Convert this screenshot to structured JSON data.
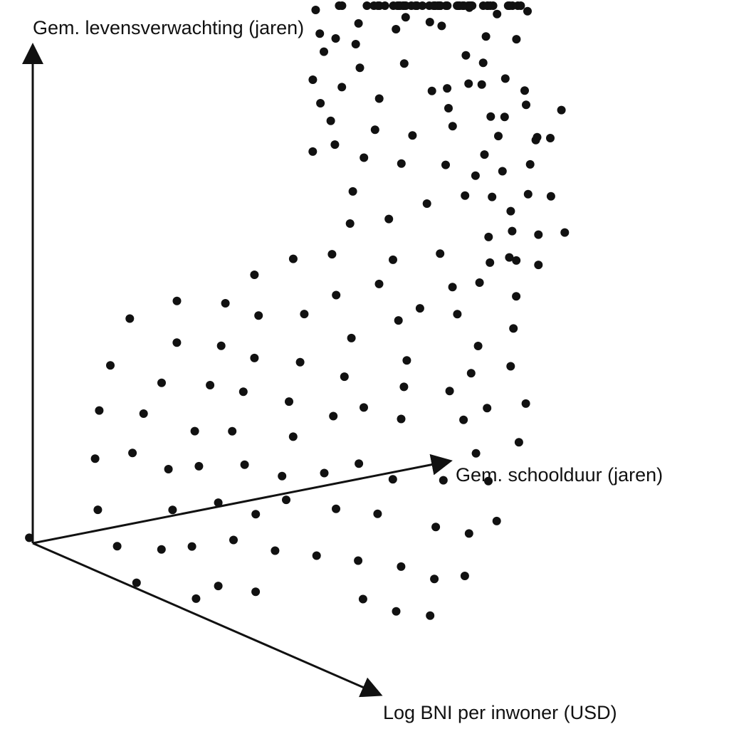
{
  "chart_data": {
    "type": "scatter",
    "projection": "3d",
    "title": "",
    "axes": {
      "vertical": "Gem. levensverwachting (jaren)",
      "depth": "Gem. schoolduur (jaren)",
      "front": "Log BNI per inwoner (USD)"
    },
    "tick_labels": "none",
    "grid": false,
    "legend": "none",
    "colors": {
      "background": "#ffffff",
      "axes": "#111111",
      "points": "#111111"
    },
    "points_note": "Values are the three axis coordinates in arbitrary units (no tick labels printed): x = Gem. schoolduur along depth axis, y = Log BNI along front axis, z = Gem. levensverwachting.",
    "points": [
      {
        "x": 0.94,
        "y": -0.3,
        "z": 0.68
      },
      {
        "x": 0.97,
        "y": -0.29,
        "z": 0.67
      },
      {
        "x": 1.06,
        "y": -0.12,
        "z": 0.61
      },
      {
        "x": 0.85,
        "y": -0.19,
        "z": 0.6
      },
      {
        "x": 1.01,
        "y": -0.14,
        "z": 0.66
      },
      {
        "x": 1.08,
        "y": -0.22,
        "z": 0.71
      },
      {
        "x": 1.15,
        "y": -0.2,
        "z": 0.69
      },
      {
        "x": 1.08,
        "y": -0.15,
        "z": 0.72
      },
      {
        "x": 1.03,
        "y": -0.04,
        "z": 0.64
      },
      {
        "x": 1.1,
        "y": -0.07,
        "z": 0.68
      },
      {
        "x": 1.0,
        "y": 0.0,
        "z": 0.62
      },
      {
        "x": 0.96,
        "y": 0.06,
        "z": 0.61
      },
      {
        "x": 1.04,
        "y": 0.01,
        "z": 0.66
      },
      {
        "x": 1.08,
        "y": 0.0,
        "z": 0.65
      },
      {
        "x": 1.12,
        "y": 0.02,
        "z": 0.66
      },
      {
        "x": 1.06,
        "y": 0.05,
        "z": 0.61
      },
      {
        "x": 1.15,
        "y": 0.04,
        "z": 0.64
      },
      {
        "x": 1.18,
        "y": 0.11,
        "z": 0.62
      },
      {
        "x": 1.12,
        "y": 0.08,
        "z": 0.63
      },
      {
        "x": 1.06,
        "y": 0.09,
        "z": 0.62
      },
      {
        "x": 1.02,
        "y": 0.12,
        "z": 0.6
      },
      {
        "x": 0.97,
        "y": 0.14,
        "z": 0.58
      },
      {
        "x": 1.08,
        "y": 0.16,
        "z": 0.6
      },
      {
        "x": 1.12,
        "y": 0.15,
        "z": 0.59
      },
      {
        "x": 0.91,
        "y": 0.1,
        "z": 0.56
      },
      {
        "x": 0.94,
        "y": 0.15,
        "z": 0.55
      },
      {
        "x": 0.98,
        "y": 0.18,
        "z": 0.56
      },
      {
        "x": 1.03,
        "y": 0.2,
        "z": 0.57
      },
      {
        "x": 1.11,
        "y": 0.12,
        "z": 0.58
      },
      {
        "x": 0.89,
        "y": 0.18,
        "z": 0.53
      },
      {
        "x": 0.84,
        "y": 0.13,
        "z": 0.51
      },
      {
        "x": 0.93,
        "y": 0.21,
        "z": 0.53
      },
      {
        "x": 0.95,
        "y": 0.24,
        "z": 0.51
      },
      {
        "x": 1.0,
        "y": 0.23,
        "z": 0.53
      },
      {
        "x": 1.03,
        "y": 0.26,
        "z": 0.53
      },
      {
        "x": 0.88,
        "y": 0.26,
        "z": 0.48
      },
      {
        "x": 0.92,
        "y": 0.28,
        "z": 0.49
      },
      {
        "x": 0.78,
        "y": 0.24,
        "z": 0.46
      },
      {
        "x": 0.85,
        "y": 0.3,
        "z": 0.45
      },
      {
        "x": 0.8,
        "y": 0.33,
        "z": 0.43
      },
      {
        "x": 0.76,
        "y": 0.3,
        "z": 0.42
      },
      {
        "x": 0.88,
        "y": 0.34,
        "z": 0.46
      },
      {
        "x": 0.69,
        "y": 0.29,
        "z": 0.39
      },
      {
        "x": 0.73,
        "y": 0.35,
        "z": 0.39
      },
      {
        "x": 0.83,
        "y": 0.4,
        "z": 0.42
      },
      {
        "x": 0.79,
        "y": 0.44,
        "z": 0.38
      },
      {
        "x": 0.88,
        "y": 0.32,
        "z": 0.46
      },
      {
        "x": 0.95,
        "y": 0.32,
        "z": 0.49
      },
      {
        "x": 0.9,
        "y": 0.38,
        "z": 0.46
      },
      {
        "x": 0.98,
        "y": 0.36,
        "z": 0.5
      },
      {
        "x": 0.73,
        "y": 0.41,
        "z": 0.35
      },
      {
        "x": 0.68,
        "y": 0.45,
        "z": 0.32
      },
      {
        "x": 0.75,
        "y": 0.48,
        "z": 0.33
      },
      {
        "x": 0.66,
        "y": 0.52,
        "z": 0.28
      },
      {
        "x": 0.72,
        "y": 0.56,
        "z": 0.29
      },
      {
        "x": 0.62,
        "y": 0.5,
        "z": 0.26
      },
      {
        "x": 0.6,
        "y": 0.56,
        "z": 0.22
      },
      {
        "x": 0.67,
        "y": 0.6,
        "z": 0.24
      },
      {
        "x": 0.58,
        "y": 0.62,
        "z": 0.19
      },
      {
        "x": 0.53,
        "y": 0.55,
        "z": 0.18
      },
      {
        "x": 0.55,
        "y": 0.68,
        "z": 0.14
      },
      {
        "x": 0.5,
        "y": 0.66,
        "z": 0.12
      },
      {
        "x": 0.47,
        "y": 0.6,
        "z": 0.12
      },
      {
        "x": 0.44,
        "y": 0.72,
        "z": 0.07
      },
      {
        "x": 0.4,
        "y": 0.68,
        "z": 0.06
      },
      {
        "x": 0.37,
        "y": 0.62,
        "z": 0.07
      },
      {
        "x": 0.34,
        "y": 0.74,
        "z": 0.02
      },
      {
        "x": 0.3,
        "y": 0.69,
        "z": 0.02
      },
      {
        "x": 0.27,
        "y": 0.63,
        "z": 0.03
      },
      {
        "x": 0.45,
        "y": 0.5,
        "z": 0.18
      },
      {
        "x": 0.41,
        "y": 0.45,
        "z": 0.2
      },
      {
        "x": 0.38,
        "y": 0.54,
        "z": 0.14
      },
      {
        "x": 0.33,
        "y": 0.48,
        "z": 0.14
      },
      {
        "x": 0.36,
        "y": 0.41,
        "z": 0.18
      },
      {
        "x": 0.3,
        "y": 0.58,
        "z": 0.08
      },
      {
        "x": 0.25,
        "y": 0.52,
        "z": 0.08
      },
      {
        "x": 0.2,
        "y": 0.46,
        "z": 0.08
      },
      {
        "x": 0.15,
        "y": 0.4,
        "z": 0.09
      },
      {
        "x": 0.12,
        "y": 0.5,
        "z": 0.03
      },
      {
        "x": 0.08,
        "y": 0.44,
        "z": 0.03
      },
      {
        "x": 0.52,
        "y": 0.44,
        "z": 0.26
      },
      {
        "x": 0.48,
        "y": 0.38,
        "z": 0.27
      },
      {
        "x": 0.56,
        "y": 0.4,
        "z": 0.3
      },
      {
        "x": 0.6,
        "y": 0.36,
        "z": 0.33
      },
      {
        "x": 0.5,
        "y": 0.3,
        "z": 0.3
      },
      {
        "x": 0.44,
        "y": 0.34,
        "z": 0.25
      },
      {
        "x": 0.55,
        "y": 0.26,
        "z": 0.35
      },
      {
        "x": 0.63,
        "y": 0.3,
        "z": 0.38
      },
      {
        "x": 0.65,
        "y": 0.22,
        "z": 0.42
      },
      {
        "x": 0.58,
        "y": 0.18,
        "z": 0.4
      },
      {
        "x": 0.7,
        "y": 0.2,
        "z": 0.45
      },
      {
        "x": 0.62,
        "y": 0.12,
        "z": 0.45
      },
      {
        "x": 0.56,
        "y": 0.08,
        "z": 0.44
      },
      {
        "x": 0.68,
        "y": 0.1,
        "z": 0.49
      },
      {
        "x": 0.74,
        "y": 0.14,
        "z": 0.5
      },
      {
        "x": 0.52,
        "y": 0.16,
        "z": 0.37
      },
      {
        "x": 0.46,
        "y": 0.22,
        "z": 0.31
      },
      {
        "x": 0.4,
        "y": 0.26,
        "z": 0.26
      },
      {
        "x": 0.36,
        "y": 0.32,
        "z": 0.22
      },
      {
        "x": 0.3,
        "y": 0.36,
        "z": 0.17
      },
      {
        "x": 0.26,
        "y": 0.3,
        "z": 0.18
      },
      {
        "x": 0.22,
        "y": 0.38,
        "z": 0.12
      },
      {
        "x": 0.18,
        "y": 0.32,
        "z": 0.13
      },
      {
        "x": 0.28,
        "y": 0.24,
        "z": 0.22
      },
      {
        "x": 0.34,
        "y": 0.2,
        "z": 0.27
      },
      {
        "x": 0.4,
        "y": 0.16,
        "z": 0.31
      },
      {
        "x": 0.46,
        "y": 0.1,
        "z": 0.36
      },
      {
        "x": 0.5,
        "y": 0.04,
        "z": 0.41
      },
      {
        "x": 0.43,
        "y": 0.04,
        "z": 0.37
      },
      {
        "x": 0.37,
        "y": 0.1,
        "z": 0.32
      },
      {
        "x": 0.31,
        "y": 0.14,
        "z": 0.27
      },
      {
        "x": 0.24,
        "y": 0.18,
        "z": 0.21
      },
      {
        "x": 0.2,
        "y": 0.24,
        "z": 0.17
      },
      {
        "x": 0.16,
        "y": 0.2,
        "z": 0.16
      },
      {
        "x": 0.12,
        "y": 0.26,
        "z": 0.11
      },
      {
        "x": 0.1,
        "y": 0.34,
        "z": 0.07
      },
      {
        "x": 0.06,
        "y": 0.3,
        "z": 0.06
      },
      {
        "x": 0.14,
        "y": 0.12,
        "z": 0.17
      },
      {
        "x": 0.2,
        "y": 0.08,
        "z": 0.22
      },
      {
        "x": 0.26,
        "y": 0.06,
        "z": 0.26
      },
      {
        "x": 0.33,
        "y": 0.02,
        "z": 0.31
      },
      {
        "x": 0.38,
        "y": -0.04,
        "z": 0.36
      },
      {
        "x": 0.3,
        "y": -0.08,
        "z": 0.33
      },
      {
        "x": 0.22,
        "y": -0.04,
        "z": 0.27
      },
      {
        "x": 0.16,
        "y": 0.0,
        "z": 0.21
      },
      {
        "x": 0.1,
        "y": 0.06,
        "z": 0.15
      },
      {
        "x": 0.04,
        "y": 0.14,
        "z": 0.09
      },
      {
        "x": 0.02,
        "y": 0.22,
        "z": 0.05
      },
      {
        "x": 0.0,
        "y": 0.3,
        "z": 0.01
      },
      {
        "x": 0.06,
        "y": 0.4,
        "z": 0.0
      },
      {
        "x": 0.72,
        "y": 0.06,
        "z": 0.53
      },
      {
        "x": 0.78,
        "y": 0.02,
        "z": 0.57
      },
      {
        "x": 0.82,
        "y": 0.08,
        "z": 0.57
      },
      {
        "x": 0.76,
        "y": -0.04,
        "z": 0.58
      },
      {
        "x": 0.84,
        "y": -0.02,
        "z": 0.6
      },
      {
        "x": 0.88,
        "y": 0.04,
        "z": 0.6
      },
      {
        "x": 0.9,
        "y": -0.08,
        "z": 0.63
      },
      {
        "x": 0.8,
        "y": -0.1,
        "z": 0.6
      },
      {
        "x": 0.74,
        "y": -0.08,
        "z": 0.56
      },
      {
        "x": 0.86,
        "y": -0.14,
        "z": 0.64
      },
      {
        "x": 0.92,
        "y": -0.16,
        "z": 0.66
      },
      {
        "x": 0.96,
        "y": -0.22,
        "z": 0.68
      },
      {
        "x": 0.9,
        "y": -0.24,
        "z": 0.67
      },
      {
        "x": 0.84,
        "y": -0.2,
        "z": 0.64
      },
      {
        "x": 1.0,
        "y": -0.26,
        "z": 0.7
      },
      {
        "x": 1.04,
        "y": -0.2,
        "z": 0.7
      },
      {
        "x": 1.1,
        "y": -0.26,
        "z": 0.73
      },
      {
        "x": 1.14,
        "y": -0.3,
        "z": 0.75
      },
      {
        "x": 1.18,
        "y": -0.24,
        "z": 0.74
      },
      {
        "x": 1.2,
        "y": -0.18,
        "z": 0.72
      },
      {
        "x": 1.24,
        "y": -0.22,
        "z": 0.75
      },
      {
        "x": 1.16,
        "y": -0.34,
        "z": 0.77
      },
      {
        "x": 1.22,
        "y": -0.32,
        "z": 0.78
      },
      {
        "x": 1.26,
        "y": -0.28,
        "z": 0.78
      },
      {
        "x": 1.3,
        "y": -0.26,
        "z": 0.79
      },
      {
        "x": 1.12,
        "y": -0.38,
        "z": 0.78
      },
      {
        "x": 1.18,
        "y": -0.4,
        "z": 0.8
      },
      {
        "x": 1.24,
        "y": -0.38,
        "z": 0.81
      },
      {
        "x": 1.28,
        "y": -0.34,
        "z": 0.81
      },
      {
        "x": 1.32,
        "y": -0.32,
        "z": 0.82
      },
      {
        "x": 1.2,
        "y": -0.44,
        "z": 0.82
      },
      {
        "x": 1.26,
        "y": -0.44,
        "z": 0.84
      },
      {
        "x": 1.3,
        "y": -0.4,
        "z": 0.84
      },
      {
        "x": 1.34,
        "y": -0.38,
        "z": 0.85
      },
      {
        "x": 1.22,
        "y": -0.48,
        "z": 0.85
      },
      {
        "x": 1.28,
        "y": -0.48,
        "z": 0.86
      },
      {
        "x": 1.32,
        "y": -0.46,
        "z": 0.87
      },
      {
        "x": 1.36,
        "y": -0.44,
        "z": 0.87
      },
      {
        "x": 1.3,
        "y": -0.52,
        "z": 0.89
      },
      {
        "x": 1.34,
        "y": -0.5,
        "z": 0.89
      },
      {
        "x": 1.38,
        "y": -0.48,
        "z": 0.89
      },
      {
        "x": 1.4,
        "y": -0.42,
        "z": 0.87
      },
      {
        "x": 1.42,
        "y": -0.46,
        "z": 0.9
      },
      {
        "x": 1.36,
        "y": -0.54,
        "z": 0.91
      },
      {
        "x": 1.4,
        "y": -0.52,
        "z": 0.92
      },
      {
        "x": 1.44,
        "y": -0.5,
        "z": 0.93
      },
      {
        "x": 1.46,
        "y": -0.44,
        "z": 0.91
      },
      {
        "x": 1.48,
        "y": -0.4,
        "z": 0.9
      },
      {
        "x": 1.44,
        "y": -0.56,
        "z": 0.95
      },
      {
        "x": 1.48,
        "y": -0.52,
        "z": 0.95
      },
      {
        "x": 1.5,
        "y": -0.48,
        "z": 0.94
      },
      {
        "x": 1.52,
        "y": -0.44,
        "z": 0.93
      },
      {
        "x": 1.38,
        "y": -0.58,
        "z": 0.94
      },
      {
        "x": 1.42,
        "y": -0.6,
        "z": 0.97
      },
      {
        "x": 1.46,
        "y": -0.58,
        "z": 0.97
      },
      {
        "x": 1.5,
        "y": -0.56,
        "z": 0.98
      },
      {
        "x": 1.48,
        "y": -0.62,
        "z": 1.0
      },
      {
        "x": 1.52,
        "y": -0.6,
        "z": 1.0
      },
      {
        "x": 1.54,
        "y": -0.52,
        "z": 0.97
      },
      {
        "x": 1.56,
        "y": -0.56,
        "z": 0.99
      },
      {
        "x": 1.1,
        "y": -0.02,
        "z": 0.68
      },
      {
        "x": 1.14,
        "y": -0.06,
        "z": 0.71
      },
      {
        "x": 1.18,
        "y": -0.02,
        "z": 0.71
      },
      {
        "x": 1.2,
        "y": -0.1,
        "z": 0.73
      },
      {
        "x": 1.24,
        "y": -0.06,
        "z": 0.74
      },
      {
        "x": 1.02,
        "y": -0.34,
        "z": 0.72
      },
      {
        "x": 1.06,
        "y": -0.38,
        "z": 0.74
      },
      {
        "x": 0.98,
        "y": -0.36,
        "z": 0.7
      },
      {
        "x": 1.08,
        "y": -0.3,
        "z": 0.72
      },
      {
        "x": 1.26,
        "y": -0.14,
        "z": 0.77
      },
      {
        "x": 1.3,
        "y": -0.16,
        "z": 0.79
      },
      {
        "x": 1.34,
        "y": -0.2,
        "z": 0.81
      },
      {
        "x": 0.62,
        "y": 0.46,
        "z": 0.3
      },
      {
        "x": 0.26,
        "y": 0.42,
        "z": 0.15
      },
      {
        "x": -0.05,
        "y": 0.05,
        "z": 0.03
      }
    ]
  }
}
